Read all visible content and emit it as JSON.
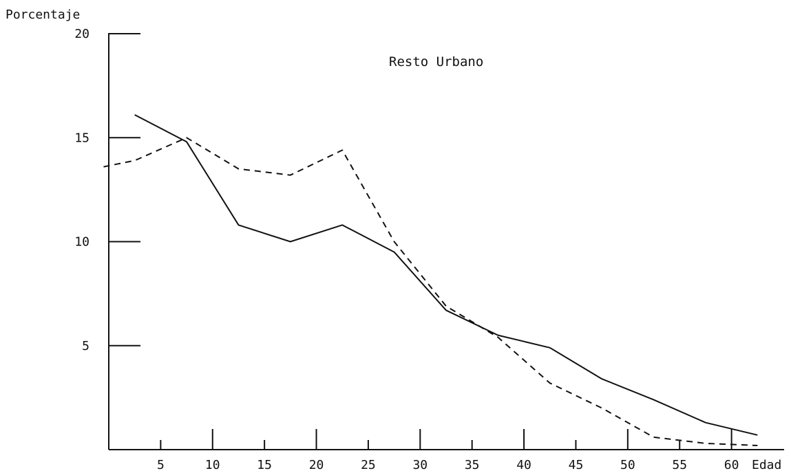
{
  "chart_data": {
    "type": "line",
    "title": "Resto Urbano",
    "ylabel": "Porcentaje",
    "xlabel": "Edad",
    "xlim": [
      0,
      65
    ],
    "ylim": [
      0,
      20
    ],
    "x_ticks": [
      "5",
      "10",
      "15",
      "20",
      "25",
      "30",
      "35",
      "40",
      "45",
      "50",
      "55",
      "60"
    ],
    "y_ticks": [
      "5",
      "10",
      "15",
      "20"
    ],
    "grid": false,
    "series": [
      {
        "style": "solid",
        "color": "#111111",
        "x": [
          2.5,
          7.5,
          12.5,
          17.5,
          22.5,
          27.5,
          32.5,
          37.5,
          42.5,
          47.5,
          52.5,
          57.5,
          62.5
        ],
        "y": [
          16.1,
          14.8,
          10.8,
          10.0,
          10.8,
          9.5,
          6.7,
          5.5,
          4.9,
          3.4,
          2.4,
          1.3,
          0.7
        ]
      },
      {
        "style": "dashed",
        "color": "#111111",
        "x": [
          -0.5,
          2.5,
          7.5,
          12.5,
          17.5,
          22.5,
          27.5,
          32.5,
          37.5,
          42.5,
          47.5,
          52.5,
          57.5,
          62.5
        ],
        "y": [
          13.6,
          13.9,
          15.0,
          13.5,
          13.2,
          14.4,
          10.0,
          6.9,
          5.4,
          3.2,
          2.0,
          0.6,
          0.3,
          0.2
        ]
      }
    ]
  }
}
